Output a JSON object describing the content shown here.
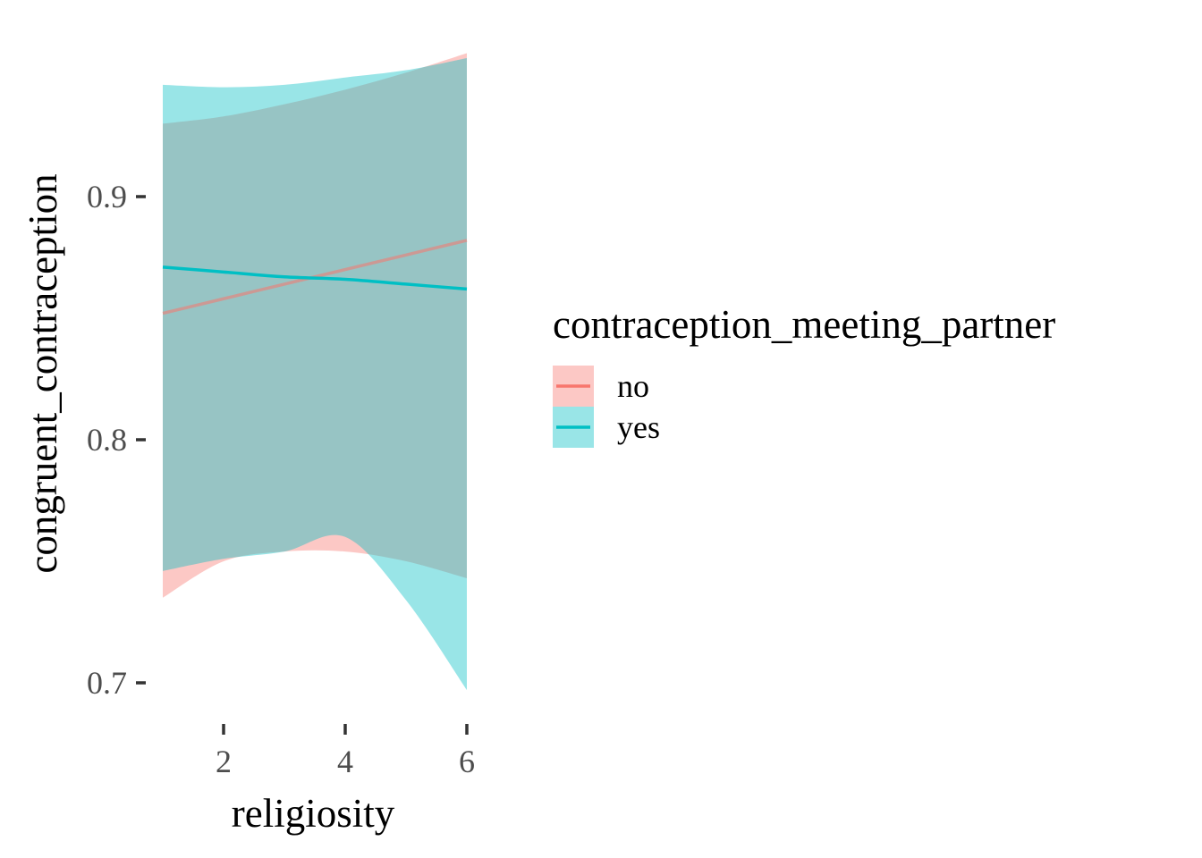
{
  "chart_data": {
    "type": "line",
    "title": "",
    "xlabel": "religiosity",
    "ylabel": "congruent_contraception",
    "xlim": [
      1,
      6
    ],
    "ylim": [
      0.69,
      0.96
    ],
    "x_ticks": [
      2,
      4,
      6
    ],
    "y_ticks": [
      0.7,
      0.8,
      0.9
    ],
    "x_tick_labels": [
      "2",
      "4",
      "6"
    ],
    "y_tick_labels": [
      "0.7",
      "0.8",
      "0.9"
    ],
    "grid": false,
    "legend": {
      "title": "contraception_meeting_partner",
      "position": "right"
    },
    "series": [
      {
        "name": "no",
        "color": "#F8766D",
        "x": [
          1,
          2,
          3,
          4,
          5,
          6
        ],
        "y": [
          0.852,
          0.858,
          0.864,
          0.87,
          0.876,
          0.882
        ],
        "lower": [
          0.735,
          0.75,
          0.754,
          0.754,
          0.75,
          0.743
        ],
        "upper": [
          0.93,
          0.933,
          0.938,
          0.944,
          0.951,
          0.959
        ]
      },
      {
        "name": "yes",
        "color": "#00BFC4",
        "x": [
          1,
          2,
          3,
          4,
          5,
          6
        ],
        "y": [
          0.871,
          0.869,
          0.867,
          0.866,
          0.864,
          0.862
        ],
        "lower": [
          0.746,
          0.751,
          0.754,
          0.76,
          0.734,
          0.697
        ],
        "upper": [
          0.946,
          0.945,
          0.946,
          0.949,
          0.952,
          0.957
        ]
      }
    ]
  }
}
